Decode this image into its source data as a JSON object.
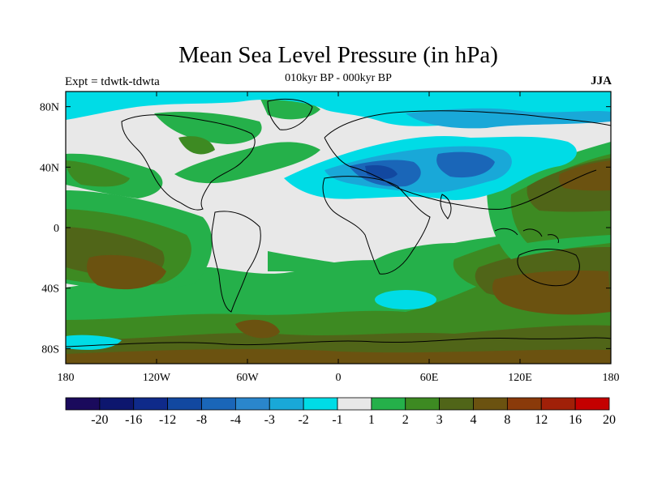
{
  "title": "Mean Sea Level Pressure (in hPa)",
  "subtitle": "010kyr BP - 000kyr BP",
  "left_label": "Expt = tdwtk-tdwta",
  "right_label": "JJA",
  "x_ticks": [
    "180",
    "120W",
    "60W",
    "0",
    "60E",
    "120E",
    "180"
  ],
  "y_ticks": [
    "80N",
    "40N",
    "0",
    "40S",
    "80S"
  ],
  "colorbar": {
    "colors": [
      "#1a0a5c",
      "#0d166e",
      "#0f2a8a",
      "#1248a0",
      "#1a66b8",
      "#2a86cc",
      "#19a8d8",
      "#00dce6",
      "#e8e8e8",
      "#25b04a",
      "#3d8a22",
      "#506518",
      "#6b5210",
      "#8a3a0a",
      "#a02008",
      "#c40000"
    ],
    "labels": [
      "-20",
      "-16",
      "-12",
      "-8",
      "-4",
      "-3",
      "-2",
      "-1",
      "1",
      "2",
      "3",
      "4",
      "8",
      "12",
      "16",
      "20"
    ]
  },
  "legend_colors": {
    "neutral": "#e8e8e8",
    "cyan": "#00dce6",
    "light_blue": "#19a8d8",
    "blue": "#1a66b8",
    "dark_blue": "#1248a0",
    "green": "#25b04a",
    "olive_green": "#3d8a22",
    "dark_olive": "#506518",
    "brown": "#6b5210"
  }
}
